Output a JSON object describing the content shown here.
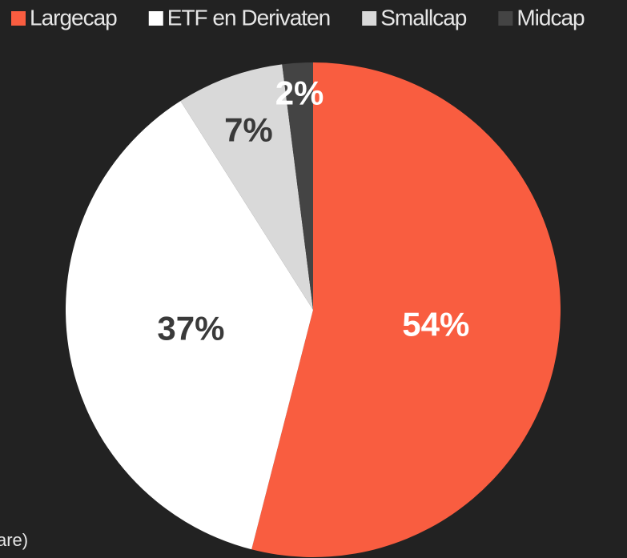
{
  "chart_data": {
    "type": "pie",
    "categories": [
      "Largecap",
      "ETF en Derivaten",
      "Smallcap",
      "Midcap"
    ],
    "values": [
      54,
      37,
      7,
      2
    ],
    "value_labels": [
      "54%",
      "37%",
      "7%",
      "2%"
    ],
    "colors": [
      "#f95d40",
      "#ffffff",
      "#d9d9d9",
      "#444444"
    ],
    "label_colors": [
      "#ffffff",
      "#3a3a3a",
      "#3a3a3a",
      "#ffffff"
    ],
    "legend": "top",
    "footnote": "are)"
  }
}
